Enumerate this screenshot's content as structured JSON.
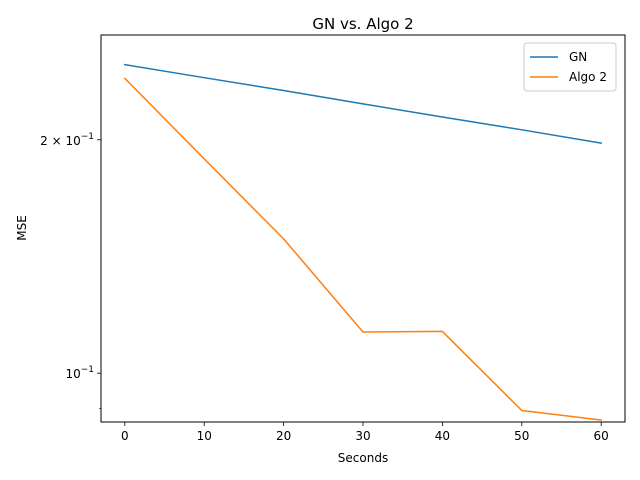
{
  "chart_data": {
    "type": "line",
    "title": "GN vs. Algo 2",
    "xlabel": "Seconds",
    "ylabel": "MSE",
    "xlim": [
      -3,
      63
    ],
    "ylim": [
      0.0865,
      0.273
    ],
    "yscale": "log",
    "grid": false,
    "legend": "top-right",
    "x_ticks": [
      0,
      10,
      20,
      30,
      40,
      50,
      60
    ],
    "x_tick_labels": [
      "0",
      "10",
      "20",
      "30",
      "40",
      "50",
      "60"
    ],
    "y_major_ticks": [
      {
        "value": 0.1,
        "label_base": "10",
        "label_exp": "−1",
        "label_coef": ""
      },
      {
        "value": 0.2,
        "label_base": "10",
        "label_exp": "−1",
        "label_coef": "2 × "
      }
    ],
    "y_minor_ticks": [
      0.09
    ],
    "x": [
      0,
      10,
      20,
      30,
      40,
      50,
      60
    ],
    "series": [
      {
        "name": "GN",
        "color": "#1f77b4",
        "values": [
          0.25,
          0.2405,
          0.2315,
          0.2225,
          0.214,
          0.206,
          0.198
        ]
      },
      {
        "name": "Algo 2",
        "color": "#ff7f0e",
        "values": [
          0.24,
          0.189,
          0.149,
          0.113,
          0.1132,
          0.0895,
          0.087
        ]
      }
    ]
  }
}
